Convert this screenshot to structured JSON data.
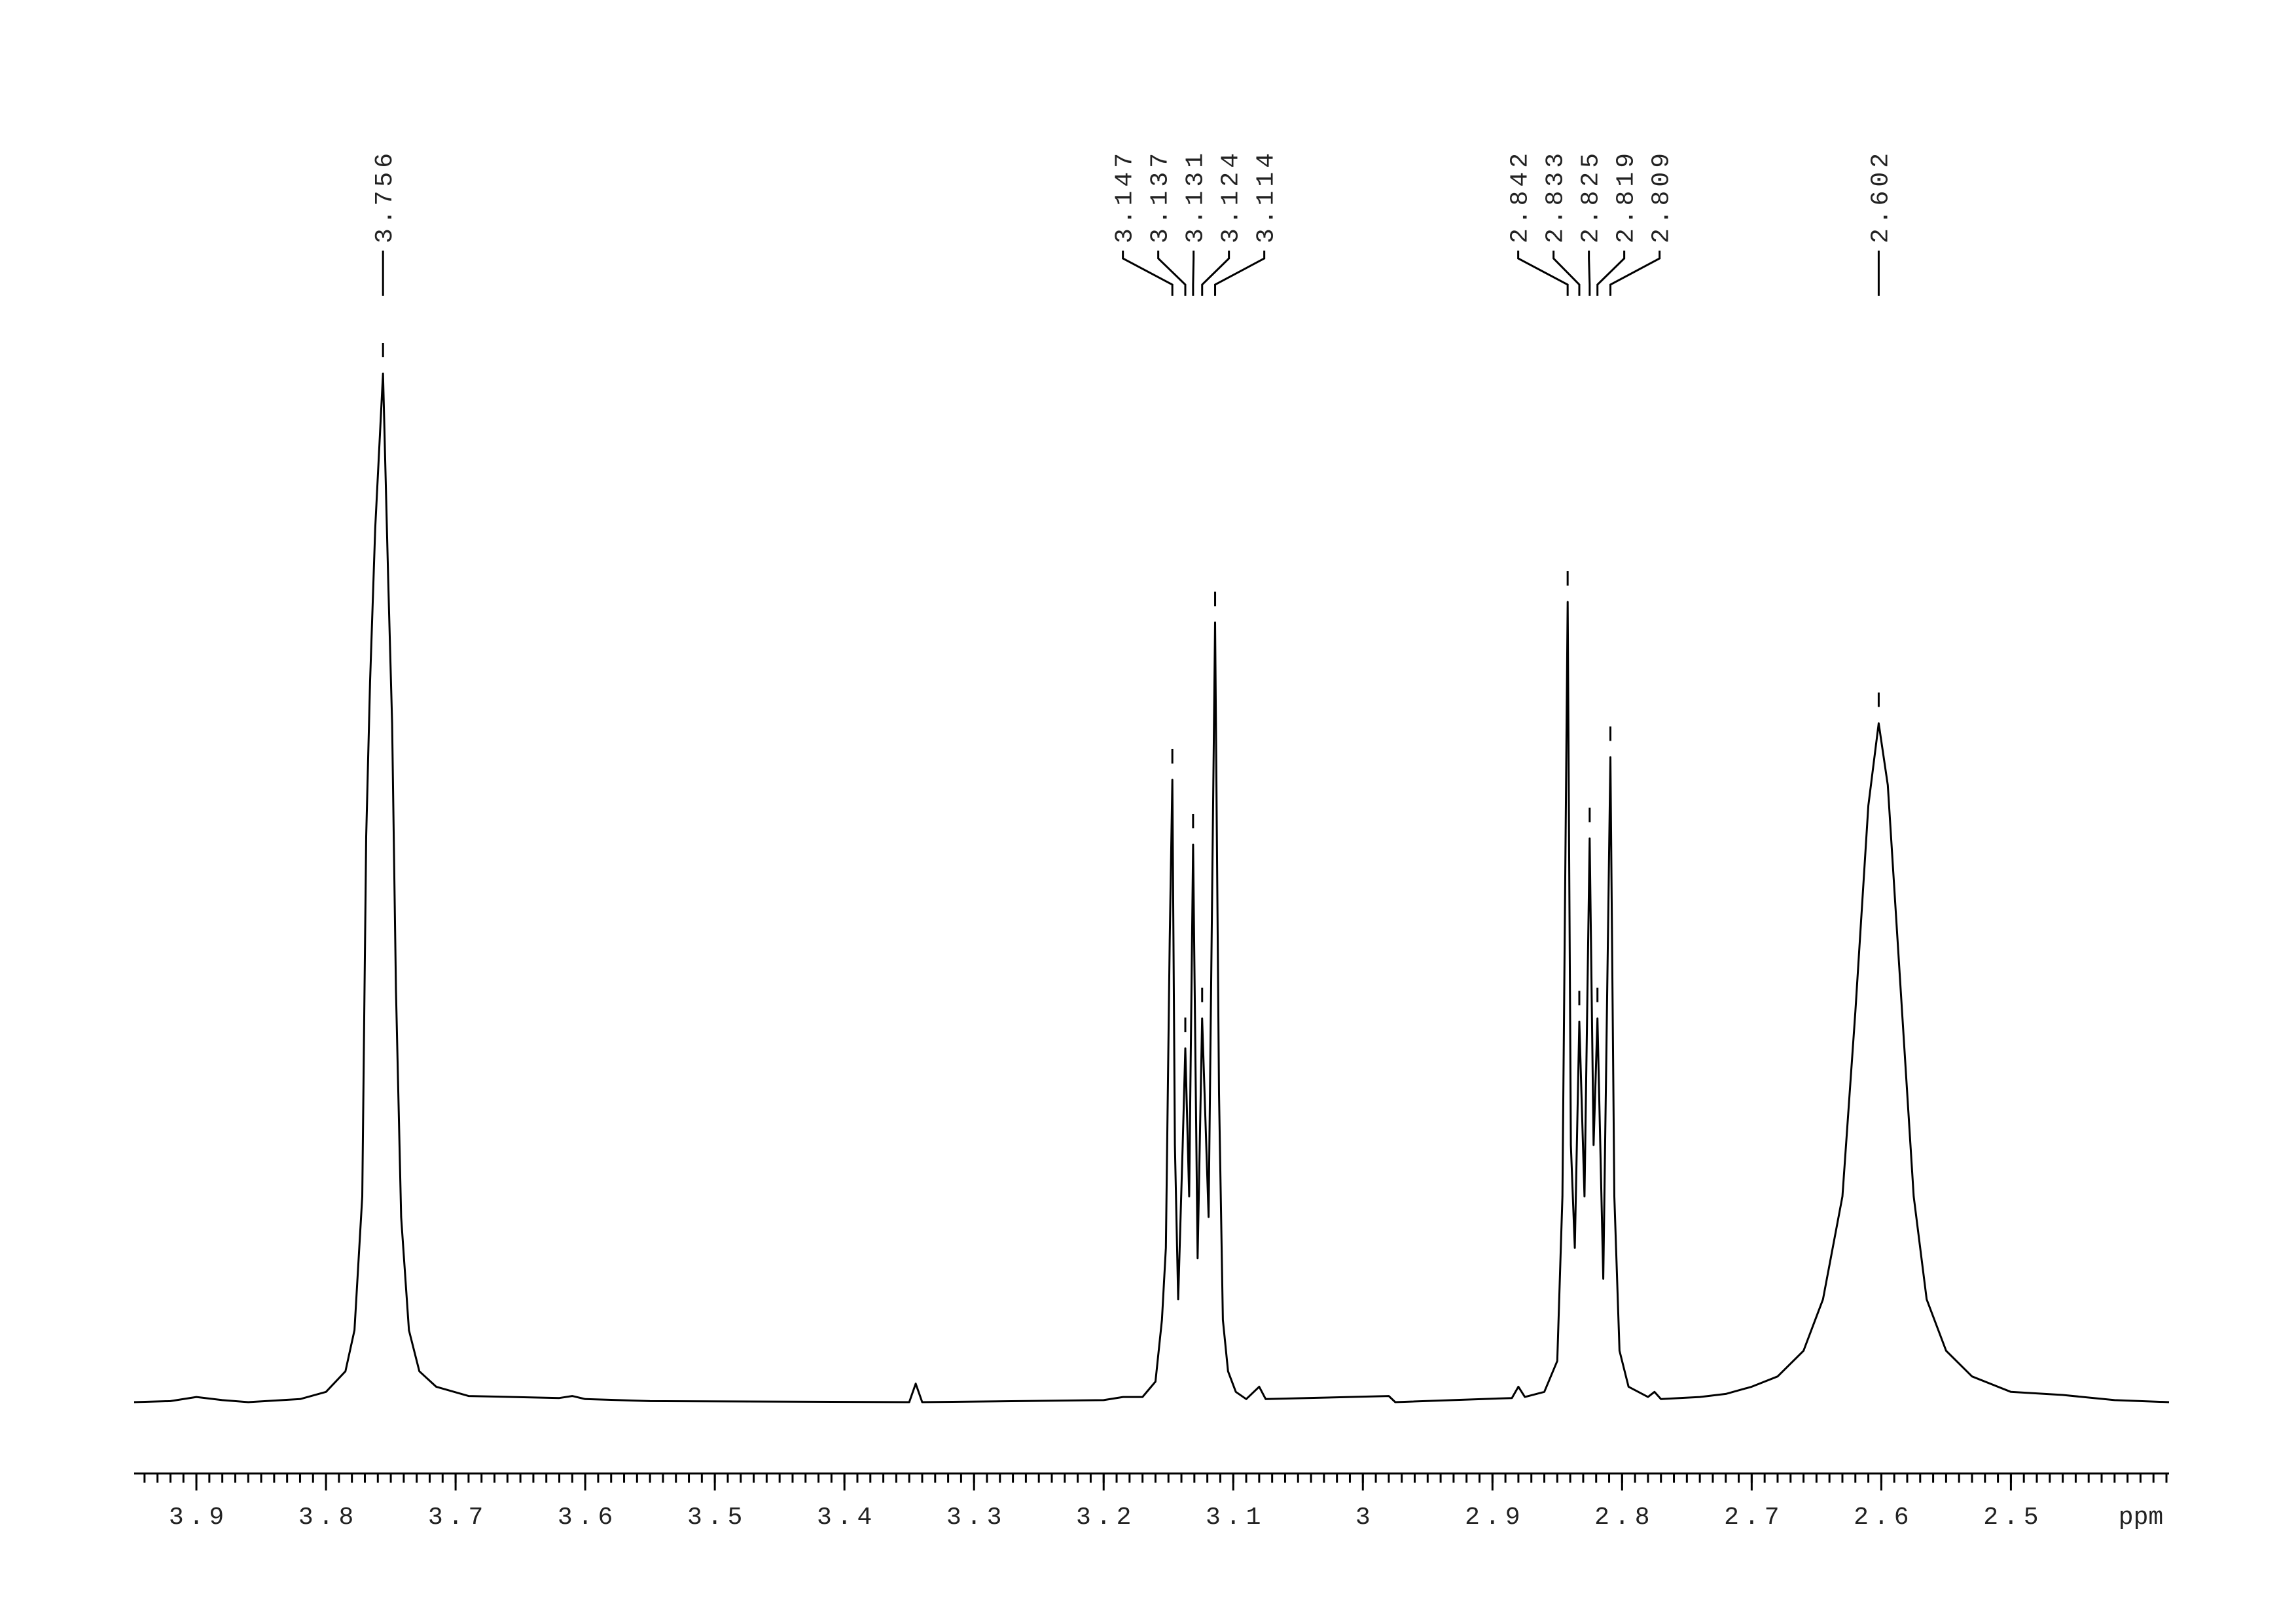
{
  "chart_data": {
    "type": "line",
    "x_label": "ppm",
    "xlim": [
      3.948,
      2.378
    ],
    "ylim": [
      0,
      100
    ],
    "xticks": [
      3.9,
      3.8,
      3.7,
      3.6,
      3.5,
      3.4,
      3.3,
      3.2,
      3.1,
      3.0,
      2.9,
      2.8,
      2.7,
      2.6,
      2.5
    ],
    "color": "#000000",
    "peak_labels": [
      3.756,
      3.147,
      3.137,
      3.131,
      3.124,
      3.114,
      2.842,
      2.833,
      2.825,
      2.819,
      2.809,
      2.602
    ],
    "peak_heights": [
      100,
      60.5,
      34.4,
      54.2,
      37.3,
      75.8,
      77.8,
      37,
      54.8,
      37.3,
      62.7,
      66
    ],
    "x": [
      3.948,
      3.92,
      3.9,
      3.88,
      3.86,
      3.82,
      3.8,
      3.785,
      3.778,
      3.772,
      3.769,
      3.766,
      3.762,
      3.756,
      3.752,
      3.749,
      3.746,
      3.742,
      3.736,
      3.728,
      3.715,
      3.69,
      3.62,
      3.61,
      3.6,
      3.55,
      3.35,
      3.345,
      3.34,
      3.2,
      3.185,
      3.17,
      3.16,
      3.155,
      3.152,
      3.149,
      3.147,
      3.145,
      3.1425,
      3.139,
      3.137,
      3.134,
      3.131,
      3.1275,
      3.124,
      3.119,
      3.114,
      3.111,
      3.108,
      3.104,
      3.098,
      3.09,
      3.08,
      3.075,
      2.98,
      2.975,
      2.885,
      2.88,
      2.875,
      2.86,
      2.85,
      2.846,
      2.842,
      2.8395,
      2.8365,
      2.833,
      2.829,
      2.825,
      2.822,
      2.819,
      2.8145,
      2.809,
      2.806,
      2.802,
      2.795,
      2.78,
      2.775,
      2.77,
      2.74,
      2.72,
      2.7,
      2.68,
      2.66,
      2.645,
      2.63,
      2.62,
      2.61,
      2.602,
      2.595,
      2.585,
      2.575,
      2.565,
      2.55,
      2.53,
      2.5,
      2.46,
      2.42,
      2.378
    ],
    "y": [
      0,
      0.1,
      0.5,
      0.2,
      0,
      0.3,
      1,
      3,
      7,
      20,
      55,
      70,
      85,
      100,
      80,
      66,
      40,
      18,
      7,
      3,
      1.5,
      0.6,
      0.4,
      0.6,
      0.3,
      0.1,
      0,
      1.8,
      0,
      0.2,
      0.5,
      0.5,
      2,
      8,
      15,
      45,
      60.5,
      25,
      10,
      25,
      34.4,
      20,
      54.2,
      14,
      37.3,
      18,
      75.8,
      30,
      8,
      3,
      1,
      0.3,
      1.5,
      0.3,
      0.6,
      0,
      0.4,
      1.5,
      0.5,
      1,
      4,
      20,
      77.8,
      25,
      15,
      37,
      20,
      54.8,
      25,
      37.3,
      12,
      62.7,
      20,
      5,
      1.5,
      0.5,
      1,
      0.3,
      0.5,
      0.8,
      1.5,
      2.5,
      5,
      10,
      20,
      38,
      58,
      66,
      60,
      40,
      20,
      10,
      5,
      2.5,
      1,
      0.7,
      0.2,
      0
    ]
  }
}
